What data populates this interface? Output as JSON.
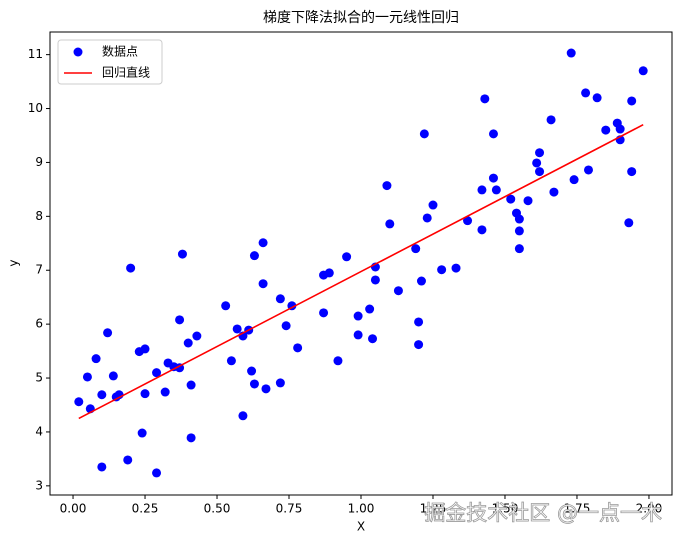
{
  "chart_data": {
    "type": "scatter",
    "title": "梯度下降法拟合的一元线性回归",
    "xlabel": "X",
    "ylabel": "y",
    "xlim": [
      -0.08,
      2.08
    ],
    "ylim": [
      2.83,
      11.42
    ],
    "xticks": [
      {
        "value": 0,
        "label": "0.00"
      },
      {
        "value": 0.25,
        "label": "0.25"
      },
      {
        "value": 0.5,
        "label": "0.50"
      },
      {
        "value": 0.75,
        "label": "0.75"
      },
      {
        "value": 1,
        "label": "1.00"
      },
      {
        "value": 1.25,
        "label": "1.25"
      },
      {
        "value": 1.5,
        "label": "1.50"
      },
      {
        "value": 1.75,
        "label": "1.75"
      },
      {
        "value": 2,
        "label": "2.00"
      }
    ],
    "yticks": [
      3,
      4,
      5,
      6,
      7,
      8,
      9,
      10,
      11
    ],
    "legend": "upper left",
    "watermark": "掘金技术社区 @一点一木",
    "series": [
      {
        "name": "数据点",
        "type": "scatter",
        "color": "#0000ff",
        "x": [
          0.02,
          0.05,
          0.06,
          0.08,
          0.1,
          0.1,
          0.12,
          0.14,
          0.15,
          0.16,
          0.19,
          0.2,
          0.23,
          0.24,
          0.25,
          0.25,
          0.29,
          0.29,
          0.32,
          0.33,
          0.35,
          0.37,
          0.37,
          0.38,
          0.4,
          0.41,
          0.41,
          0.43,
          0.53,
          0.55,
          0.57,
          0.59,
          0.59,
          0.61,
          0.62,
          0.63,
          0.63,
          0.66,
          0.66,
          0.67,
          0.72,
          0.72,
          0.74,
          0.76,
          0.78,
          0.87,
          0.87,
          0.89,
          0.92,
          0.95,
          0.99,
          0.99,
          1.03,
          1.04,
          1.05,
          1.05,
          1.09,
          1.1,
          1.13,
          1.19,
          1.2,
          1.2,
          1.21,
          1.22,
          1.23,
          1.25,
          1.28,
          1.33,
          1.37,
          1.42,
          1.42,
          1.43,
          1.46,
          1.46,
          1.47,
          1.52,
          1.54,
          1.55,
          1.55,
          1.55,
          1.58,
          1.61,
          1.62,
          1.62,
          1.66,
          1.67,
          1.73,
          1.74,
          1.78,
          1.79,
          1.82,
          1.85,
          1.89,
          1.9,
          1.9,
          1.93,
          1.94,
          1.94,
          1.98
        ],
        "values": [
          4.56,
          5.02,
          4.43,
          5.36,
          3.35,
          4.69,
          5.84,
          5.04,
          4.65,
          4.69,
          3.48,
          7.04,
          5.49,
          3.98,
          5.54,
          4.71,
          5.1,
          3.24,
          4.74,
          5.28,
          5.21,
          5.19,
          6.08,
          7.3,
          5.65,
          4.87,
          3.89,
          5.78,
          6.34,
          5.32,
          5.91,
          4.3,
          5.78,
          5.89,
          5.13,
          4.89,
          7.27,
          6.75,
          7.51,
          4.8,
          4.91,
          6.47,
          5.97,
          6.34,
          5.56,
          6.21,
          6.91,
          6.95,
          5.32,
          7.25,
          5.8,
          6.15,
          6.28,
          5.73,
          7.06,
          6.82,
          8.57,
          7.86,
          6.62,
          7.4,
          6.04,
          5.62,
          6.8,
          9.53,
          7.97,
          8.21,
          7.01,
          7.04,
          7.92,
          8.49,
          7.75,
          10.18,
          9.53,
          8.71,
          8.49,
          8.32,
          8.06,
          7.73,
          7.4,
          7.95,
          8.29,
          8.99,
          8.83,
          9.18,
          9.79,
          8.45,
          11.03,
          8.68,
          10.29,
          8.86,
          10.2,
          9.6,
          9.73,
          9.62,
          9.42,
          7.88,
          10.14,
          8.83,
          10.7
        ]
      },
      {
        "name": "回归直线",
        "type": "line",
        "color": "#ff0000",
        "x": [
          0.02,
          1.98
        ],
        "values": [
          4.25,
          9.7
        ]
      }
    ]
  }
}
